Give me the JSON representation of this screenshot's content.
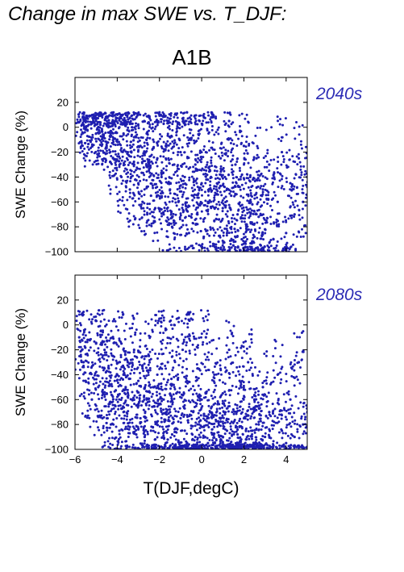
{
  "title": "Change in max SWE vs. T_DJF:",
  "scenario": "A1B",
  "colors": {
    "points": "#1f1fb0",
    "period_label": "#2b2bb5"
  },
  "chart_data": [
    {
      "type": "scatter",
      "panel": "top",
      "period": "2040s",
      "ylabel": "SWE Change (%)",
      "xlabel": "T(DJF,degC)",
      "xlim": [
        -6,
        5
      ],
      "ylim": [
        -100,
        40
      ],
      "xticks": [
        -6,
        -4,
        -2,
        0,
        2,
        4
      ],
      "yticks": [
        20,
        0,
        -20,
        -40,
        -60,
        -80,
        -100
      ],
      "x_tick_labels_shown": false,
      "grid": false,
      "note": "Dense cloud of ~4000 stations; upper envelope ~+10% across T, lower envelope falling from ~-60% at -4°C to -100% above 2°C.",
      "series": [
        {
          "values": [
            [
              -5.8,
              4
            ],
            [
              -5.6,
              2
            ],
            [
              -5.5,
              -2
            ],
            [
              -5.4,
              1
            ],
            [
              -5.2,
              3
            ],
            [
              -5.0,
              -5
            ],
            [
              -4.9,
              0
            ],
            [
              -4.8,
              2
            ],
            [
              -4.7,
              -8
            ],
            [
              -4.6,
              3
            ],
            [
              -4.5,
              -15
            ],
            [
              -4.4,
              1
            ],
            [
              -4.3,
              -3
            ],
            [
              -4.2,
              -25
            ],
            [
              -4.1,
              2
            ],
            [
              -4.0,
              -10
            ],
            [
              -3.9,
              0
            ],
            [
              -3.8,
              -40
            ],
            [
              -3.7,
              -5
            ],
            [
              -3.6,
              1
            ],
            [
              -3.5,
              -20
            ],
            [
              -3.4,
              -50
            ],
            [
              -3.3,
              0
            ],
            [
              -3.2,
              -30
            ],
            [
              -3.1,
              -8
            ],
            [
              -3.0,
              -45
            ],
            [
              -2.9,
              -15
            ],
            [
              -2.8,
              -60
            ],
            [
              -2.7,
              -20
            ],
            [
              -2.6,
              -5
            ],
            [
              -2.5,
              -35
            ],
            [
              -2.4,
              -55
            ],
            [
              -2.3,
              -10
            ],
            [
              -2.2,
              -65
            ],
            [
              -2.1,
              -25
            ],
            [
              -2.0,
              12
            ],
            [
              -1.9,
              -40
            ],
            [
              -1.8,
              -70
            ],
            [
              -1.7,
              -15
            ],
            [
              -1.6,
              5
            ],
            [
              -1.5,
              -50
            ],
            [
              -1.4,
              -80
            ],
            [
              -1.3,
              -30
            ],
            [
              -1.2,
              10
            ],
            [
              -1.1,
              -60
            ],
            [
              -1.0,
              -20
            ],
            [
              -0.9,
              -75
            ],
            [
              -0.8,
              -40
            ],
            [
              -0.7,
              12
            ],
            [
              -0.6,
              -85
            ],
            [
              -0.5,
              -10
            ],
            [
              -0.4,
              -55
            ],
            [
              -0.3,
              -30
            ],
            [
              -0.2,
              -70
            ],
            [
              -0.1,
              5
            ],
            [
              0.0,
              -45
            ],
            [
              0.1,
              -88
            ],
            [
              0.2,
              -20
            ],
            [
              0.3,
              -60
            ],
            [
              0.4,
              -35
            ],
            [
              0.5,
              8
            ],
            [
              0.6,
              -75
            ],
            [
              0.7,
              -50
            ],
            [
              0.8,
              -92
            ],
            [
              0.9,
              -25
            ],
            [
              1.0,
              -65
            ],
            [
              1.1,
              -40
            ],
            [
              1.2,
              -85
            ],
            [
              1.3,
              5
            ],
            [
              1.4,
              -55
            ],
            [
              1.5,
              -95
            ],
            [
              1.6,
              -30
            ],
            [
              1.7,
              -70
            ],
            [
              1.8,
              -48
            ],
            [
              1.9,
              -90
            ],
            [
              2.0,
              -15
            ],
            [
              2.1,
              -78
            ],
            [
              2.2,
              -98
            ],
            [
              2.3,
              -40
            ],
            [
              2.4,
              -62
            ],
            [
              2.5,
              -88
            ],
            [
              2.6,
              -25
            ],
            [
              2.7,
              -72
            ],
            [
              2.8,
              -95
            ],
            [
              2.9,
              -50
            ],
            [
              3.0,
              -82
            ],
            [
              3.2,
              -30
            ],
            [
              3.4,
              -90
            ],
            [
              3.6,
              -60
            ],
            [
              3.8,
              -20
            ],
            [
              4.0,
              -85
            ],
            [
              4.2,
              -45
            ],
            [
              4.4,
              -70
            ],
            [
              4.6,
              -25
            ],
            [
              4.8,
              -60
            ],
            [
              5.0,
              -40
            ]
          ]
        }
      ]
    },
    {
      "type": "scatter",
      "panel": "bottom",
      "period": "2080s",
      "ylabel": "SWE Change (%)",
      "xlabel": "T(DJF,degC)",
      "xlim": [
        -6,
        5
      ],
      "ylim": [
        -100,
        40
      ],
      "xticks": [
        -6,
        -4,
        -2,
        0,
        2,
        4
      ],
      "x_tick_labels": [
        "−6",
        "−4",
        "−2",
        "0",
        "2",
        "4"
      ],
      "yticks": [
        20,
        0,
        -20,
        -40,
        -60,
        -80,
        -100
      ],
      "grid": false,
      "note": "Dense cloud shifted downward; heavy concentration near -80% to -100% for T between 0 and 3°C.",
      "series": [
        {
          "values": [
            [
              -5.8,
              -10
            ],
            [
              -5.6,
              -30
            ],
            [
              -5.5,
              -45
            ],
            [
              -5.4,
              -12
            ],
            [
              -5.2,
              -60
            ],
            [
              -5.0,
              -15
            ],
            [
              -4.9,
              -50
            ],
            [
              -4.8,
              -8
            ],
            [
              -4.7,
              -75
            ],
            [
              -4.6,
              -20
            ],
            [
              -4.5,
              -55
            ],
            [
              -4.4,
              -35
            ],
            [
              -4.3,
              -80
            ],
            [
              -4.2,
              -25
            ],
            [
              -4.1,
              -65
            ],
            [
              -4.0,
              -40
            ],
            [
              -3.9,
              -85
            ],
            [
              -3.8,
              -15
            ],
            [
              -3.7,
              -70
            ],
            [
              -3.6,
              -50
            ],
            [
              -3.5,
              -30
            ],
            [
              -3.4,
              -82
            ],
            [
              -3.3,
              -60
            ],
            [
              -3.2,
              -20
            ],
            [
              -3.1,
              -88
            ],
            [
              -3.0,
              -45
            ],
            [
              -2.9,
              -75
            ],
            [
              -2.8,
              -35
            ],
            [
              -2.7,
              -90
            ],
            [
              -2.6,
              -60
            ],
            [
              -2.5,
              -25
            ],
            [
              -2.4,
              -85
            ],
            [
              -2.3,
              -50
            ],
            [
              -2.2,
              -92
            ],
            [
              -2.1,
              -40
            ],
            [
              -2.0,
              5
            ],
            [
              -1.9,
              -78
            ],
            [
              -1.8,
              -60
            ],
            [
              -1.7,
              -95
            ],
            [
              -1.6,
              -30
            ],
            [
              -1.5,
              -70
            ],
            [
              -1.4,
              -88
            ],
            [
              -1.3,
              0
            ],
            [
              -1.2,
              -55
            ],
            [
              -1.1,
              -94
            ],
            [
              -1.0,
              -75
            ],
            [
              -0.9,
              -20
            ],
            [
              -0.8,
              -85
            ],
            [
              -0.7,
              -45
            ],
            [
              -0.6,
              -96
            ],
            [
              -0.5,
              5
            ],
            [
              -0.4,
              -70
            ],
            [
              -0.3,
              -90
            ],
            [
              -0.2,
              -35
            ],
            [
              -0.1,
              -98
            ],
            [
              0.0,
              -60
            ],
            [
              0.1,
              -82
            ],
            [
              0.2,
              -10
            ],
            [
              0.3,
              -95
            ],
            [
              0.4,
              -70
            ],
            [
              0.5,
              -88
            ],
            [
              0.6,
              -40
            ],
            [
              0.7,
              -99
            ],
            [
              0.8,
              -78
            ],
            [
              0.9,
              -92
            ],
            [
              1.0,
              -55
            ],
            [
              1.1,
              -97
            ],
            [
              1.2,
              -85
            ],
            [
              1.3,
              -20
            ],
            [
              1.4,
              -94
            ],
            [
              1.5,
              -68
            ],
            [
              1.6,
              -99
            ],
            [
              1.7,
              -88
            ],
            [
              1.8,
              -45
            ],
            [
              1.9,
              -96
            ],
            [
              2.0,
              -75
            ],
            [
              2.1,
              -92
            ],
            [
              2.2,
              -30
            ],
            [
              2.3,
              -98
            ],
            [
              2.4,
              -85
            ],
            [
              2.5,
              -60
            ],
            [
              2.6,
              -95
            ],
            [
              2.7,
              -80
            ],
            [
              2.8,
              -99
            ],
            [
              2.9,
              -50
            ],
            [
              3.0,
              -90
            ],
            [
              3.2,
              -70
            ],
            [
              3.4,
              -97
            ],
            [
              3.6,
              -40
            ],
            [
              3.8,
              -85
            ],
            [
              4.0,
              -95
            ],
            [
              4.2,
              -60
            ],
            [
              4.4,
              -90
            ],
            [
              4.6,
              -30
            ],
            [
              4.8,
              -80
            ],
            [
              5.0,
              -98
            ]
          ]
        }
      ]
    }
  ]
}
